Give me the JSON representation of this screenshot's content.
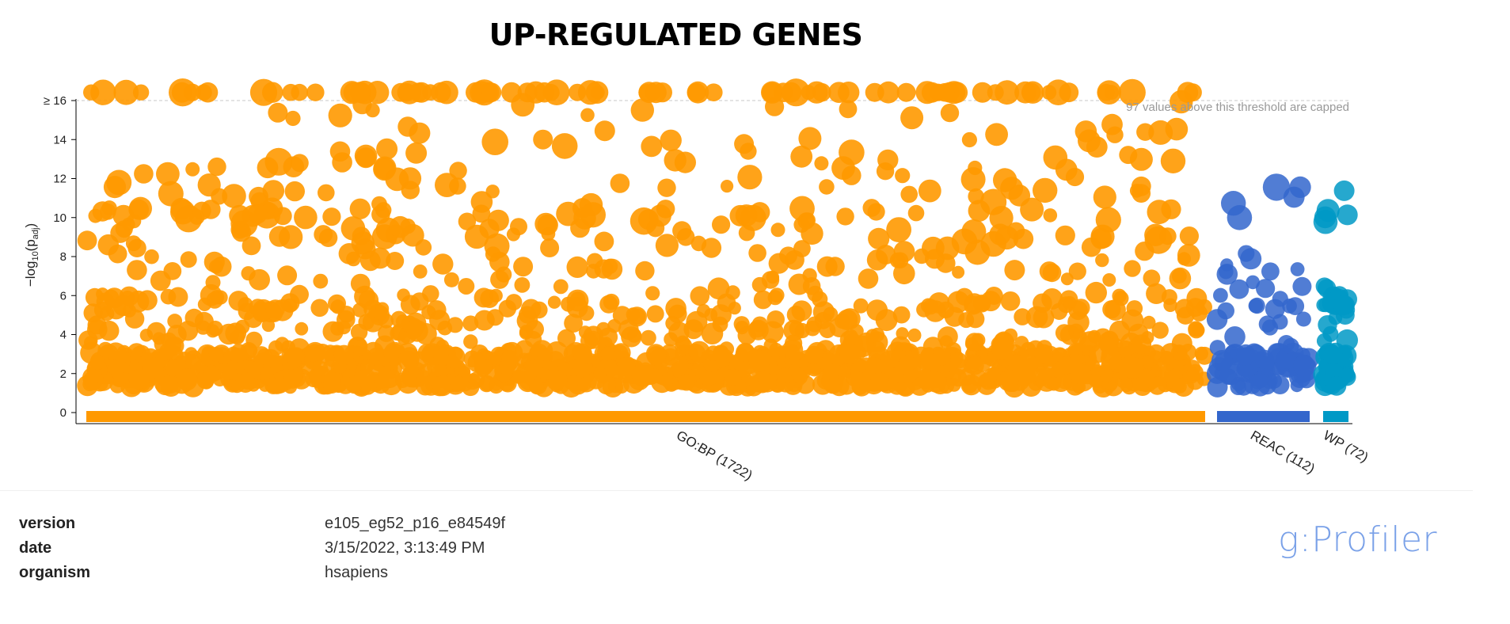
{
  "title": "UP-REGULATED GENES",
  "chart_data": {
    "type": "scatter",
    "title": "UP-REGULATED GENES",
    "ylabel_main": "−log",
    "ylabel_sub": "10",
    "ylabel_paren": "(p",
    "ylabel_sub2": "adj",
    "ylabel_close": ")",
    "ylim": [
      0,
      16
    ],
    "yticks": [
      {
        "value": 0,
        "label": "0"
      },
      {
        "value": 2,
        "label": "2"
      },
      {
        "value": 4,
        "label": "4"
      },
      {
        "value": 6,
        "label": "6"
      },
      {
        "value": 8,
        "label": "8"
      },
      {
        "value": 10,
        "label": "10"
      },
      {
        "value": 12,
        "label": "12"
      },
      {
        "value": 14,
        "label": "14"
      },
      {
        "value": 16,
        "label": "≥ 16"
      }
    ],
    "threshold": 16,
    "threshold_note": "97 values above this threshold are capped",
    "grid": false,
    "sources": [
      {
        "name": "GO:BP (1722)",
        "color": "#ff9900",
        "count": 1722
      },
      {
        "name": "REAC (112)",
        "color": "#3366cc",
        "count": 112
      },
      {
        "name": "WP (72)",
        "color": "#0099c6",
        "count": 72
      }
    ]
  },
  "meta": {
    "rows": [
      {
        "key": "version",
        "value": "e105_eg52_p16_e84549f"
      },
      {
        "key": "date",
        "value": "3/15/2022, 3:13:49 PM"
      },
      {
        "key": "organism",
        "value": "hsapiens"
      }
    ]
  },
  "brand": "g:Profiler"
}
